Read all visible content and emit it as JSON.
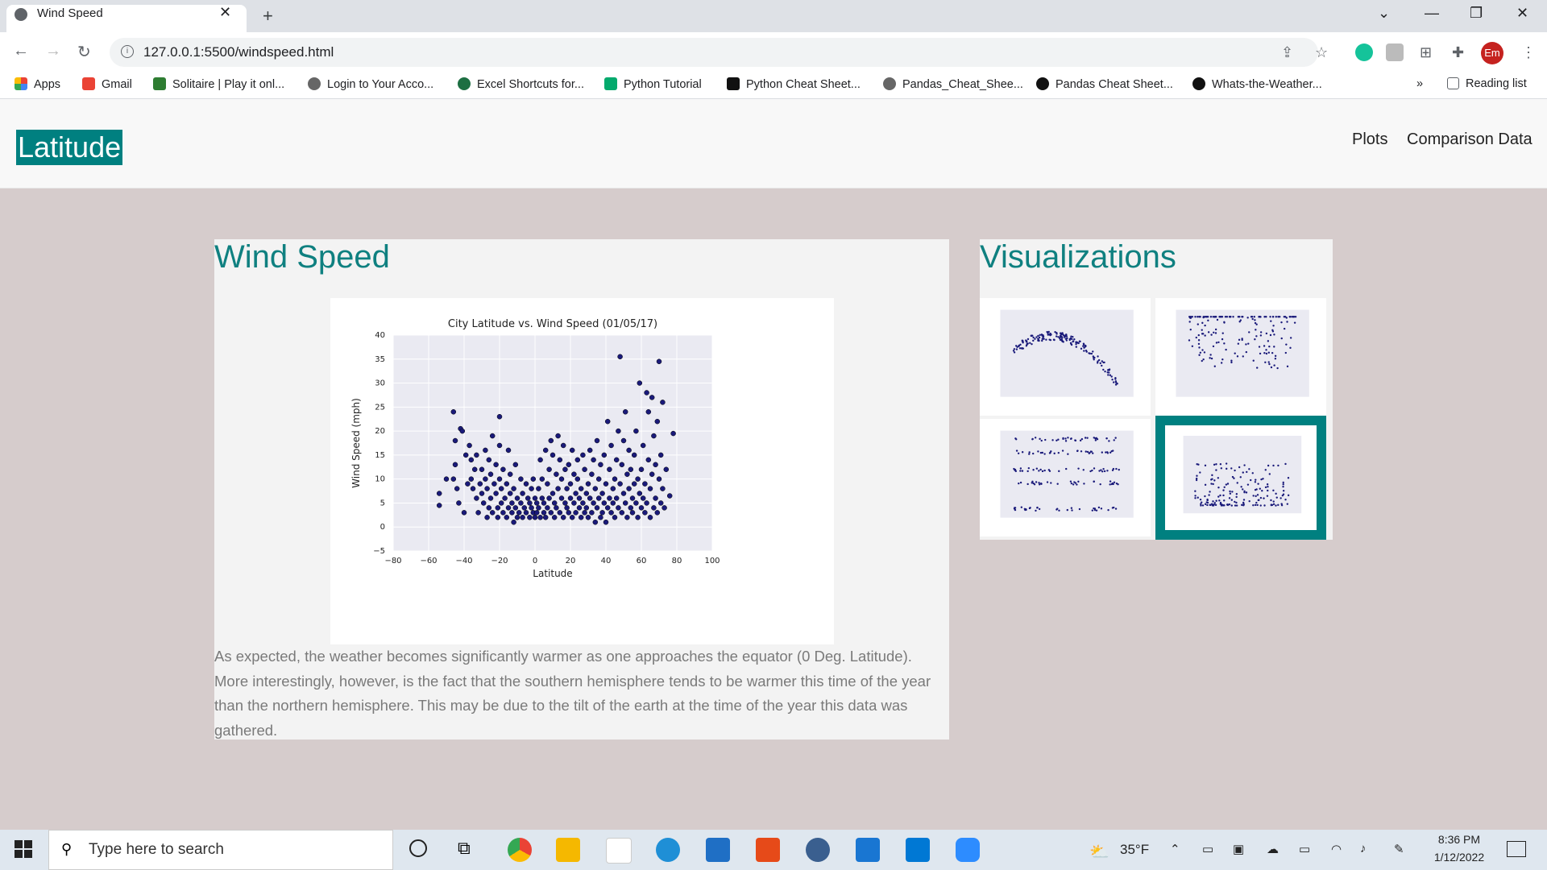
{
  "browser": {
    "tab_title": "Wind Speed",
    "url": "127.0.0.1:5500/windspeed.html",
    "profile_initials": "Em",
    "bookmarks": [
      {
        "label": "Apps",
        "icon": "apps-grid-icon"
      },
      {
        "label": "Gmail",
        "icon": "gmail-icon"
      },
      {
        "label": "Solitaire | Play it onl...",
        "icon": "solitaire-icon"
      },
      {
        "label": "Login to Your Acco...",
        "icon": "globe-icon"
      },
      {
        "label": "Excel Shortcuts for...",
        "icon": "excel-icon"
      },
      {
        "label": "Python Tutorial",
        "icon": "w3-icon"
      },
      {
        "label": "Python Cheat Sheet...",
        "icon": "medium-icon"
      },
      {
        "label": "Pandas_Cheat_Shee...",
        "icon": "globe-icon"
      },
      {
        "label": "Pandas Cheat Sheet...",
        "icon": "bookmark-circle-icon"
      },
      {
        "label": "Whats-the-Weather...",
        "icon": "github-icon"
      }
    ],
    "overflow": "»",
    "reading_list": "Reading list"
  },
  "nav": {
    "brand": "Latitude",
    "links": [
      "Plots",
      "Comparison Data"
    ]
  },
  "main": {
    "title": "Wind Speed",
    "description": "As expected, the weather becomes significantly warmer as one approaches the equator (0 Deg. Latitude). More interestingly, however, is the fact that the southern hemisphere tends to be warmer this time of the year than the northern hemisphere. This may be due to the tilt of the earth at the time of the year this data was gathered."
  },
  "sidebar": {
    "title": "Visualizations",
    "thumbnails": [
      {
        "name": "max-temp-thumb",
        "active": false
      },
      {
        "name": "humidity-thumb",
        "active": false
      },
      {
        "name": "cloudiness-thumb",
        "active": false
      },
      {
        "name": "wind-speed-thumb",
        "active": true
      }
    ]
  },
  "chart_data": {
    "type": "scatter",
    "title": "City Latitude vs. Wind Speed (01/05/17)",
    "xlabel": "Latitude",
    "ylabel": "Wind Speed (mph)",
    "xlim": [
      -80,
      100
    ],
    "ylim": [
      -5,
      40
    ],
    "xticks": [
      "−80",
      "−60",
      "−40",
      "−20",
      "0",
      "20",
      "40",
      "60",
      "80",
      "100"
    ],
    "yticks": [
      "−5",
      "0",
      "5",
      "10",
      "15",
      "20",
      "25",
      "30",
      "35",
      "40"
    ],
    "grid": true,
    "marker_color": "#1a1a7a",
    "points": [
      [
        -54,
        7
      ],
      [
        -54,
        4.5
      ],
      [
        -50,
        10
      ],
      [
        -46,
        24
      ],
      [
        -46,
        10
      ],
      [
        -45,
        18
      ],
      [
        -45,
        13
      ],
      [
        -44,
        8
      ],
      [
        -43,
        5
      ],
      [
        -42,
        20.5
      ],
      [
        -41,
        20
      ],
      [
        -40,
        3
      ],
      [
        -39,
        15
      ],
      [
        -38,
        9
      ],
      [
        -37,
        17
      ],
      [
        -36,
        14
      ],
      [
        -36,
        10
      ],
      [
        -35,
        8
      ],
      [
        -34,
        12
      ],
      [
        -33,
        6
      ],
      [
        -33,
        15
      ],
      [
        -32,
        3
      ],
      [
        -31,
        9
      ],
      [
        -30,
        7
      ],
      [
        -30,
        12
      ],
      [
        -29,
        5
      ],
      [
        -28,
        16
      ],
      [
        -28,
        10
      ],
      [
        -27,
        2
      ],
      [
        -27,
        8
      ],
      [
        -26,
        14
      ],
      [
        -26,
        4
      ],
      [
        -25,
        11
      ],
      [
        -25,
        6
      ],
      [
        -24,
        19
      ],
      [
        -24,
        3
      ],
      [
        -23,
        9
      ],
      [
        -22,
        7
      ],
      [
        -22,
        13
      ],
      [
        -21,
        4
      ],
      [
        -21,
        2
      ],
      [
        -20,
        10
      ],
      [
        -20,
        17
      ],
      [
        -20,
        23
      ],
      [
        -19,
        5
      ],
      [
        -19,
        8
      ],
      [
        -18,
        3
      ],
      [
        -18,
        12
      ],
      [
        -17,
        6
      ],
      [
        -16,
        9
      ],
      [
        -16,
        2
      ],
      [
        -15,
        16
      ],
      [
        -15,
        4
      ],
      [
        -14,
        7
      ],
      [
        -14,
        11
      ],
      [
        -13,
        3
      ],
      [
        -13,
        5
      ],
      [
        -12,
        8
      ],
      [
        -12,
        1
      ],
      [
        -11,
        4
      ],
      [
        -11,
        13
      ],
      [
        -10,
        6
      ],
      [
        -10,
        2
      ],
      [
        -9,
        3
      ],
      [
        -8,
        10
      ],
      [
        -8,
        5
      ],
      [
        -7,
        7
      ],
      [
        -7,
        2
      ],
      [
        -6,
        4
      ],
      [
        -5,
        9
      ],
      [
        -5,
        3
      ],
      [
        -4,
        6
      ],
      [
        -3,
        2
      ],
      [
        -3,
        5
      ],
      [
        -2,
        8
      ],
      [
        -2,
        4
      ],
      [
        -1,
        3
      ],
      [
        -1,
        10
      ],
      [
        0,
        6
      ],
      [
        0,
        2
      ],
      [
        1,
        5
      ],
      [
        1,
        3
      ],
      [
        2,
        8
      ],
      [
        2,
        4
      ],
      [
        3,
        2
      ],
      [
        3,
        14
      ],
      [
        4,
        6
      ],
      [
        4,
        10
      ],
      [
        5,
        3
      ],
      [
        5,
        5
      ],
      [
        6,
        16
      ],
      [
        6,
        2
      ],
      [
        7,
        9
      ],
      [
        7,
        4
      ],
      [
        8,
        12
      ],
      [
        8,
        6
      ],
      [
        9,
        3
      ],
      [
        9,
        18
      ],
      [
        10,
        7
      ],
      [
        10,
        15
      ],
      [
        11,
        5
      ],
      [
        11,
        2
      ],
      [
        12,
        11
      ],
      [
        12,
        4
      ],
      [
        13,
        19
      ],
      [
        13,
        8
      ],
      [
        14,
        3
      ],
      [
        14,
        14
      ],
      [
        15,
        6
      ],
      [
        15,
        10
      ],
      [
        16,
        2
      ],
      [
        16,
        17
      ],
      [
        17,
        5
      ],
      [
        17,
        12
      ],
      [
        18,
        8
      ],
      [
        18,
        4
      ],
      [
        19,
        3
      ],
      [
        19,
        13
      ],
      [
        20,
        6
      ],
      [
        20,
        9
      ],
      [
        21,
        2
      ],
      [
        21,
        16
      ],
      [
        22,
        5
      ],
      [
        22,
        11
      ],
      [
        23,
        7
      ],
      [
        23,
        3
      ],
      [
        24,
        10
      ],
      [
        24,
        14
      ],
      [
        25,
        4
      ],
      [
        25,
        6
      ],
      [
        26,
        2
      ],
      [
        26,
        8
      ],
      [
        27,
        15
      ],
      [
        27,
        5
      ],
      [
        28,
        3
      ],
      [
        28,
        12
      ],
      [
        29,
        7
      ],
      [
        29,
        4
      ],
      [
        30,
        9
      ],
      [
        30,
        2
      ],
      [
        31,
        16
      ],
      [
        31,
        6
      ],
      [
        32,
        11
      ],
      [
        32,
        3
      ],
      [
        33,
        5
      ],
      [
        33,
        14
      ],
      [
        34,
        1
      ],
      [
        34,
        8
      ],
      [
        35,
        18
      ],
      [
        35,
        4
      ],
      [
        36,
        6
      ],
      [
        36,
        10
      ],
      [
        37,
        2
      ],
      [
        37,
        13
      ],
      [
        38,
        7
      ],
      [
        38,
        3
      ],
      [
        39,
        15
      ],
      [
        39,
        5
      ],
      [
        40,
        9
      ],
      [
        40,
        1
      ],
      [
        41,
        22
      ],
      [
        41,
        4
      ],
      [
        42,
        6
      ],
      [
        42,
        12
      ],
      [
        43,
        3
      ],
      [
        43,
        17
      ],
      [
        44,
        8
      ],
      [
        44,
        5
      ],
      [
        45,
        10
      ],
      [
        45,
        2
      ],
      [
        46,
        14
      ],
      [
        46,
        6
      ],
      [
        47,
        20
      ],
      [
        47,
        4
      ],
      [
        48,
        35.5
      ],
      [
        48,
        9
      ],
      [
        49,
        3
      ],
      [
        49,
        13
      ],
      [
        50,
        18
      ],
      [
        50,
        7
      ],
      [
        51,
        24
      ],
      [
        51,
        5
      ],
      [
        52,
        11
      ],
      [
        52,
        2
      ],
      [
        53,
        16
      ],
      [
        53,
        8
      ],
      [
        54,
        4
      ],
      [
        54,
        12
      ],
      [
        55,
        6
      ],
      [
        55,
        3
      ],
      [
        56,
        9
      ],
      [
        56,
        15
      ],
      [
        57,
        5
      ],
      [
        57,
        20
      ],
      [
        58,
        2
      ],
      [
        58,
        10
      ],
      [
        59,
        7
      ],
      [
        59,
        30
      ],
      [
        60,
        4
      ],
      [
        60,
        12
      ],
      [
        61,
        6
      ],
      [
        61,
        17
      ],
      [
        62,
        3
      ],
      [
        62,
        9
      ],
      [
        63,
        28
      ],
      [
        63,
        5
      ],
      [
        64,
        14
      ],
      [
        64,
        24
      ],
      [
        65,
        8
      ],
      [
        65,
        2
      ],
      [
        66,
        27
      ],
      [
        66,
        11
      ],
      [
        67,
        4
      ],
      [
        67,
        19
      ],
      [
        68,
        6
      ],
      [
        68,
        13
      ],
      [
        69,
        3
      ],
      [
        69,
        22
      ],
      [
        70,
        34.5
      ],
      [
        70,
        10
      ],
      [
        71,
        5
      ],
      [
        71,
        15
      ],
      [
        72,
        26
      ],
      [
        72,
        8
      ],
      [
        73,
        4
      ],
      [
        74,
        12
      ],
      [
        76,
        6.5
      ],
      [
        78,
        19.5
      ]
    ]
  },
  "taskbar": {
    "search_placeholder": "Type here to search",
    "weather": "35°F",
    "time": "8:36 PM",
    "date": "1/12/2022"
  }
}
